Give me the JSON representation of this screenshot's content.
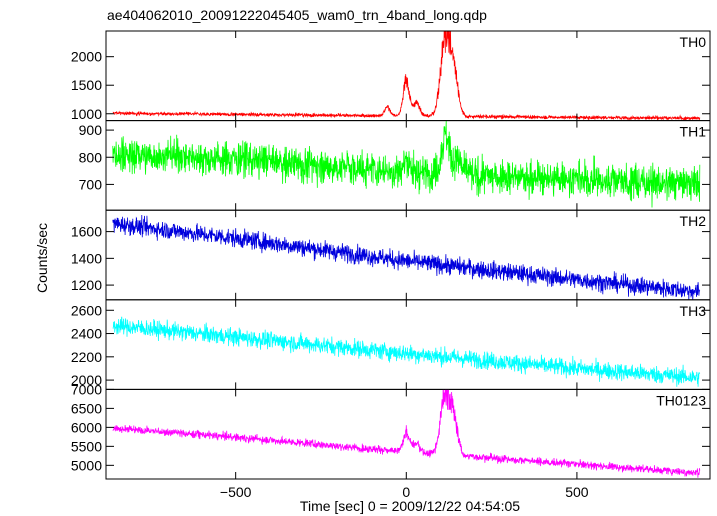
{
  "chart_data": {
    "type": "line",
    "title": "ae404062010_20091222045405_wam0_trn_4band_long.qdp",
    "xlabel": "Time [sec] 0 = 2009/12/22 04:54:05",
    "ylabel": "Counts/sec",
    "xlim": [
      -880,
      890
    ],
    "xticks": [
      -500,
      0,
      500
    ],
    "xtick_labels": [
      "−500",
      "0",
      "500"
    ],
    "grid": false,
    "panels": [
      {
        "name": "TH0",
        "color": "#ff0000",
        "ylim": [
          880,
          2450
        ],
        "yticks": [
          1000,
          1500,
          2000
        ],
        "baseline": {
          "x": [
            -860,
            -500,
            0,
            500,
            860
          ],
          "y": [
            1010,
            990,
            960,
            935,
            920
          ]
        },
        "noise": 16,
        "peaks": [
          {
            "x": -55,
            "h": 160,
            "w": 8
          },
          {
            "x": 0,
            "h": 620,
            "w": 9
          },
          {
            "x": 30,
            "h": 240,
            "w": 10
          },
          {
            "x": 115,
            "h": 1400,
            "w": 14
          },
          {
            "x": 140,
            "h": 700,
            "w": 12
          }
        ]
      },
      {
        "name": "TH1",
        "color": "#00ff00",
        "ylim": [
          605,
          935
        ],
        "yticks": [
          700,
          800,
          900
        ],
        "baseline": {
          "x": [
            -860,
            -500,
            0,
            500,
            860
          ],
          "y": [
            812,
            795,
            745,
            718,
            705
          ]
        },
        "noise": 34,
        "peaks": [
          {
            "x": 0,
            "h": 45,
            "w": 10
          },
          {
            "x": 115,
            "h": 140,
            "w": 12
          },
          {
            "x": 150,
            "h": 45,
            "w": 12
          }
        ]
      },
      {
        "name": "TH2",
        "color": "#0000dd",
        "ylim": [
          1090,
          1760
        ],
        "yticks": [
          1200,
          1400,
          1600
        ],
        "baseline": {
          "x": [
            -860,
            -500,
            0,
            500,
            860
          ],
          "y": [
            1660,
            1550,
            1380,
            1240,
            1150
          ]
        },
        "noise": 36,
        "peaks": []
      },
      {
        "name": "TH3",
        "color": "#00ffff",
        "ylim": [
          1920,
          2690
        ],
        "yticks": [
          2000,
          2200,
          2400,
          2600
        ],
        "baseline": {
          "x": [
            -860,
            -500,
            0,
            500,
            860
          ],
          "y": [
            2470,
            2370,
            2230,
            2100,
            2020
          ]
        },
        "noise": 40,
        "peaks": []
      },
      {
        "name": "TH0123",
        "color": "#ff00ff",
        "ylim": [
          4640,
          7000
        ],
        "yticks": [
          5000,
          5500,
          6000,
          6500,
          7000
        ],
        "baseline": {
          "x": [
            -860,
            -500,
            0,
            500,
            860
          ],
          "y": [
            5980,
            5740,
            5350,
            5030,
            4800
          ]
        },
        "noise": 55,
        "peaks": [
          {
            "x": 0,
            "h": 520,
            "w": 9
          },
          {
            "x": 30,
            "h": 250,
            "w": 10
          },
          {
            "x": 115,
            "h": 1600,
            "w": 14
          },
          {
            "x": 140,
            "h": 800,
            "w": 12
          }
        ]
      }
    ]
  }
}
